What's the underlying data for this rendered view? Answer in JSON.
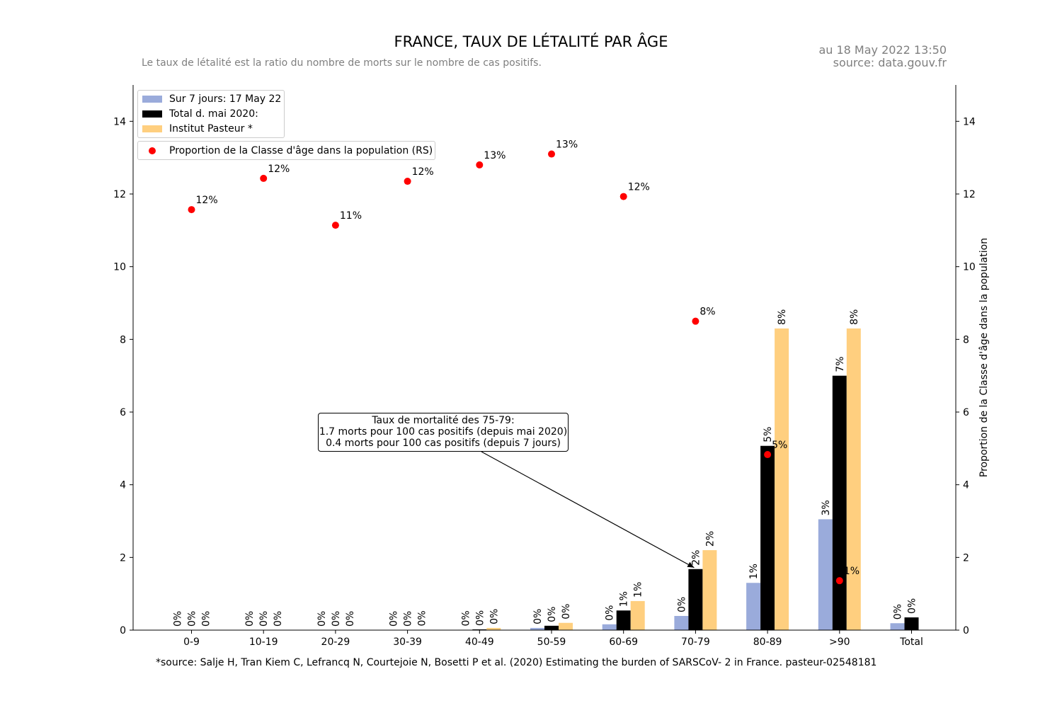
{
  "header": {
    "title": "FRANCE, TAUX DE LÉTALITÉ PAR ÂGE",
    "subtitle": "Le taux de létalité est la ratio du nombre de morts sur le nombre de cas positifs.",
    "date": "au 18 May 2022 13:50",
    "source": "source: data.gouv.fr"
  },
  "footnote": "*source: Salje H, Tran Kiem C, Lefrancq N, Courtejoie N, Bosetti P et al. (2020) Estimating the burden of SARSCoV- 2 in France. pasteur-02548181",
  "annotation": {
    "line1": "Taux de mortalité des 75-79:",
    "line2": "1.7 morts pour 100 cas positifs (depuis mai 2020)",
    "line3": "0.4 morts pour 100 cas positifs (depuis 7 jours)"
  },
  "legend": {
    "items": [
      "Sur 7 jours: 17 May 22",
      "Total d. mai 2020:",
      "Institut Pasteur *"
    ],
    "dot_label": "Proportion de la Classe d'âge dans la population (RS)"
  },
  "chart_data": {
    "type": "bar",
    "categories": [
      "0-9",
      "10-19",
      "20-29",
      "30-39",
      "40-49",
      "50-59",
      "60-69",
      "70-79",
      "80-89",
      ">90",
      "Total"
    ],
    "series": [
      {
        "name": "Sur 7 jours: 17 May 22",
        "color": "#9aabdb",
        "values": [
          0,
          0,
          0,
          0,
          0.01,
          0.06,
          0.16,
          0.39,
          1.3,
          3.05,
          0.19
        ],
        "labels": [
          "0%",
          "0%",
          "0%",
          "0%",
          "0%",
          "0%",
          "0%",
          "0%",
          "1%",
          "3%",
          "0%"
        ]
      },
      {
        "name": "Total d. mai 2020:",
        "color": "#000000",
        "values": [
          0,
          0,
          0,
          0,
          0.02,
          0.12,
          0.54,
          1.68,
          5.07,
          7.0,
          0.35
        ],
        "labels": [
          "0%",
          "0%",
          "0%",
          "0%",
          "0%",
          "0%",
          "1%",
          "2%",
          "5%",
          "7%",
          "0%"
        ]
      },
      {
        "name": "Institut Pasteur *",
        "color": "#ffcf7f",
        "values": [
          0,
          0,
          0,
          0.01,
          0.06,
          0.2,
          0.8,
          2.2,
          8.3,
          8.3,
          null
        ],
        "labels": [
          "0%",
          "0%",
          "0%",
          "0%",
          "0%",
          "0%",
          "1%",
          "2%",
          "8%",
          "8%",
          null
        ]
      }
    ],
    "population_share": {
      "name": "Proportion de la Classe d'âge dans la population (RS)",
      "color": "#ff0000",
      "values": [
        11.57,
        12.43,
        11.14,
        12.35,
        12.8,
        13.1,
        11.93,
        8.5,
        4.83,
        1.36
      ],
      "labels": [
        "12%",
        "12%",
        "11%",
        "12%",
        "13%",
        "13%",
        "12%",
        "8%",
        "5%",
        "1%"
      ]
    },
    "y_ticks": [
      0,
      2,
      4,
      6,
      8,
      10,
      12,
      14
    ],
    "ylim": [
      0,
      15
    ],
    "y2label": "Proportion de la Classe d'âge dans la population",
    "grid": false
  }
}
